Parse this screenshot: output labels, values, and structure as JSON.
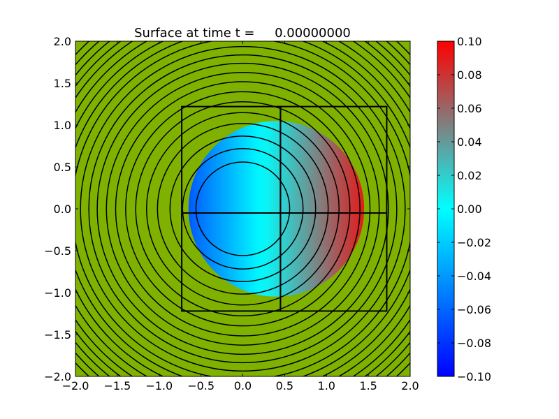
{
  "chart_data": {
    "type": "heatmap",
    "title": "Surface at time t =     0.00000000",
    "xlabel": "",
    "ylabel": "",
    "xlim": [
      -2.0,
      2.0
    ],
    "ylim": [
      -2.0,
      2.0
    ],
    "x_ticks": [
      -2.0,
      -1.5,
      -1.0,
      -0.5,
      0.0,
      0.5,
      1.0,
      1.5,
      2.0
    ],
    "y_ticks": [
      -2.0,
      -1.5,
      -1.0,
      -0.5,
      0.0,
      0.5,
      1.0,
      1.5,
      2.0
    ],
    "x_tick_labels": [
      "−2.0",
      "−1.5",
      "−1.0",
      "−0.5",
      "0.0",
      "0.5",
      "1.0",
      "1.5",
      "2.0"
    ],
    "y_tick_labels": [
      "−2.0",
      "−1.5",
      "−1.0",
      "−0.5",
      "0.0",
      "0.5",
      "1.0",
      "1.5",
      "2.0"
    ],
    "background_color": "#7fb200",
    "surface": {
      "center": [
        0.4,
        0.0
      ],
      "radius": 1.05,
      "profile": "linear in x",
      "value_at_left_edge": -0.065,
      "value_at_right_edge": 0.09
    },
    "contours": {
      "center": [
        0.0,
        0.0
      ],
      "radii": [
        0.56,
        0.72,
        0.87,
        1.02,
        1.15,
        1.28,
        1.4,
        1.52,
        1.63,
        1.74,
        1.84,
        1.94,
        2.04,
        2.13,
        2.22,
        2.31,
        2.4,
        2.48,
        2.56,
        2.64,
        2.72
      ],
      "color": "#000000"
    },
    "grid_boxes": [
      {
        "x0": -0.73,
        "x1": 0.45,
        "y0": -1.22,
        "y1": 1.22
      },
      {
        "x0": 0.45,
        "x1": 1.72,
        "y0": -1.22,
        "y1": 1.22
      }
    ],
    "horizontal_line": {
      "y": -0.05,
      "x0": -0.73,
      "x1": 1.72
    },
    "colorbar": {
      "range": [
        -0.1,
        0.1
      ],
      "ticks": [
        -0.1,
        -0.08,
        -0.06,
        -0.04,
        -0.02,
        0.0,
        0.02,
        0.04,
        0.06,
        0.08,
        0.1
      ],
      "tick_labels": [
        "−0.10",
        "−0.08",
        "−0.06",
        "−0.04",
        "−0.02",
        "0.00",
        "0.02",
        "0.04",
        "0.06",
        "0.08",
        "0.10"
      ],
      "colormap": [
        {
          "v": -0.1,
          "color": "#0000ff"
        },
        {
          "v": 0.0,
          "color": "#00ffff"
        },
        {
          "v": 0.05,
          "color": "#808080"
        },
        {
          "v": 0.1,
          "color": "#ff0000"
        }
      ]
    }
  }
}
